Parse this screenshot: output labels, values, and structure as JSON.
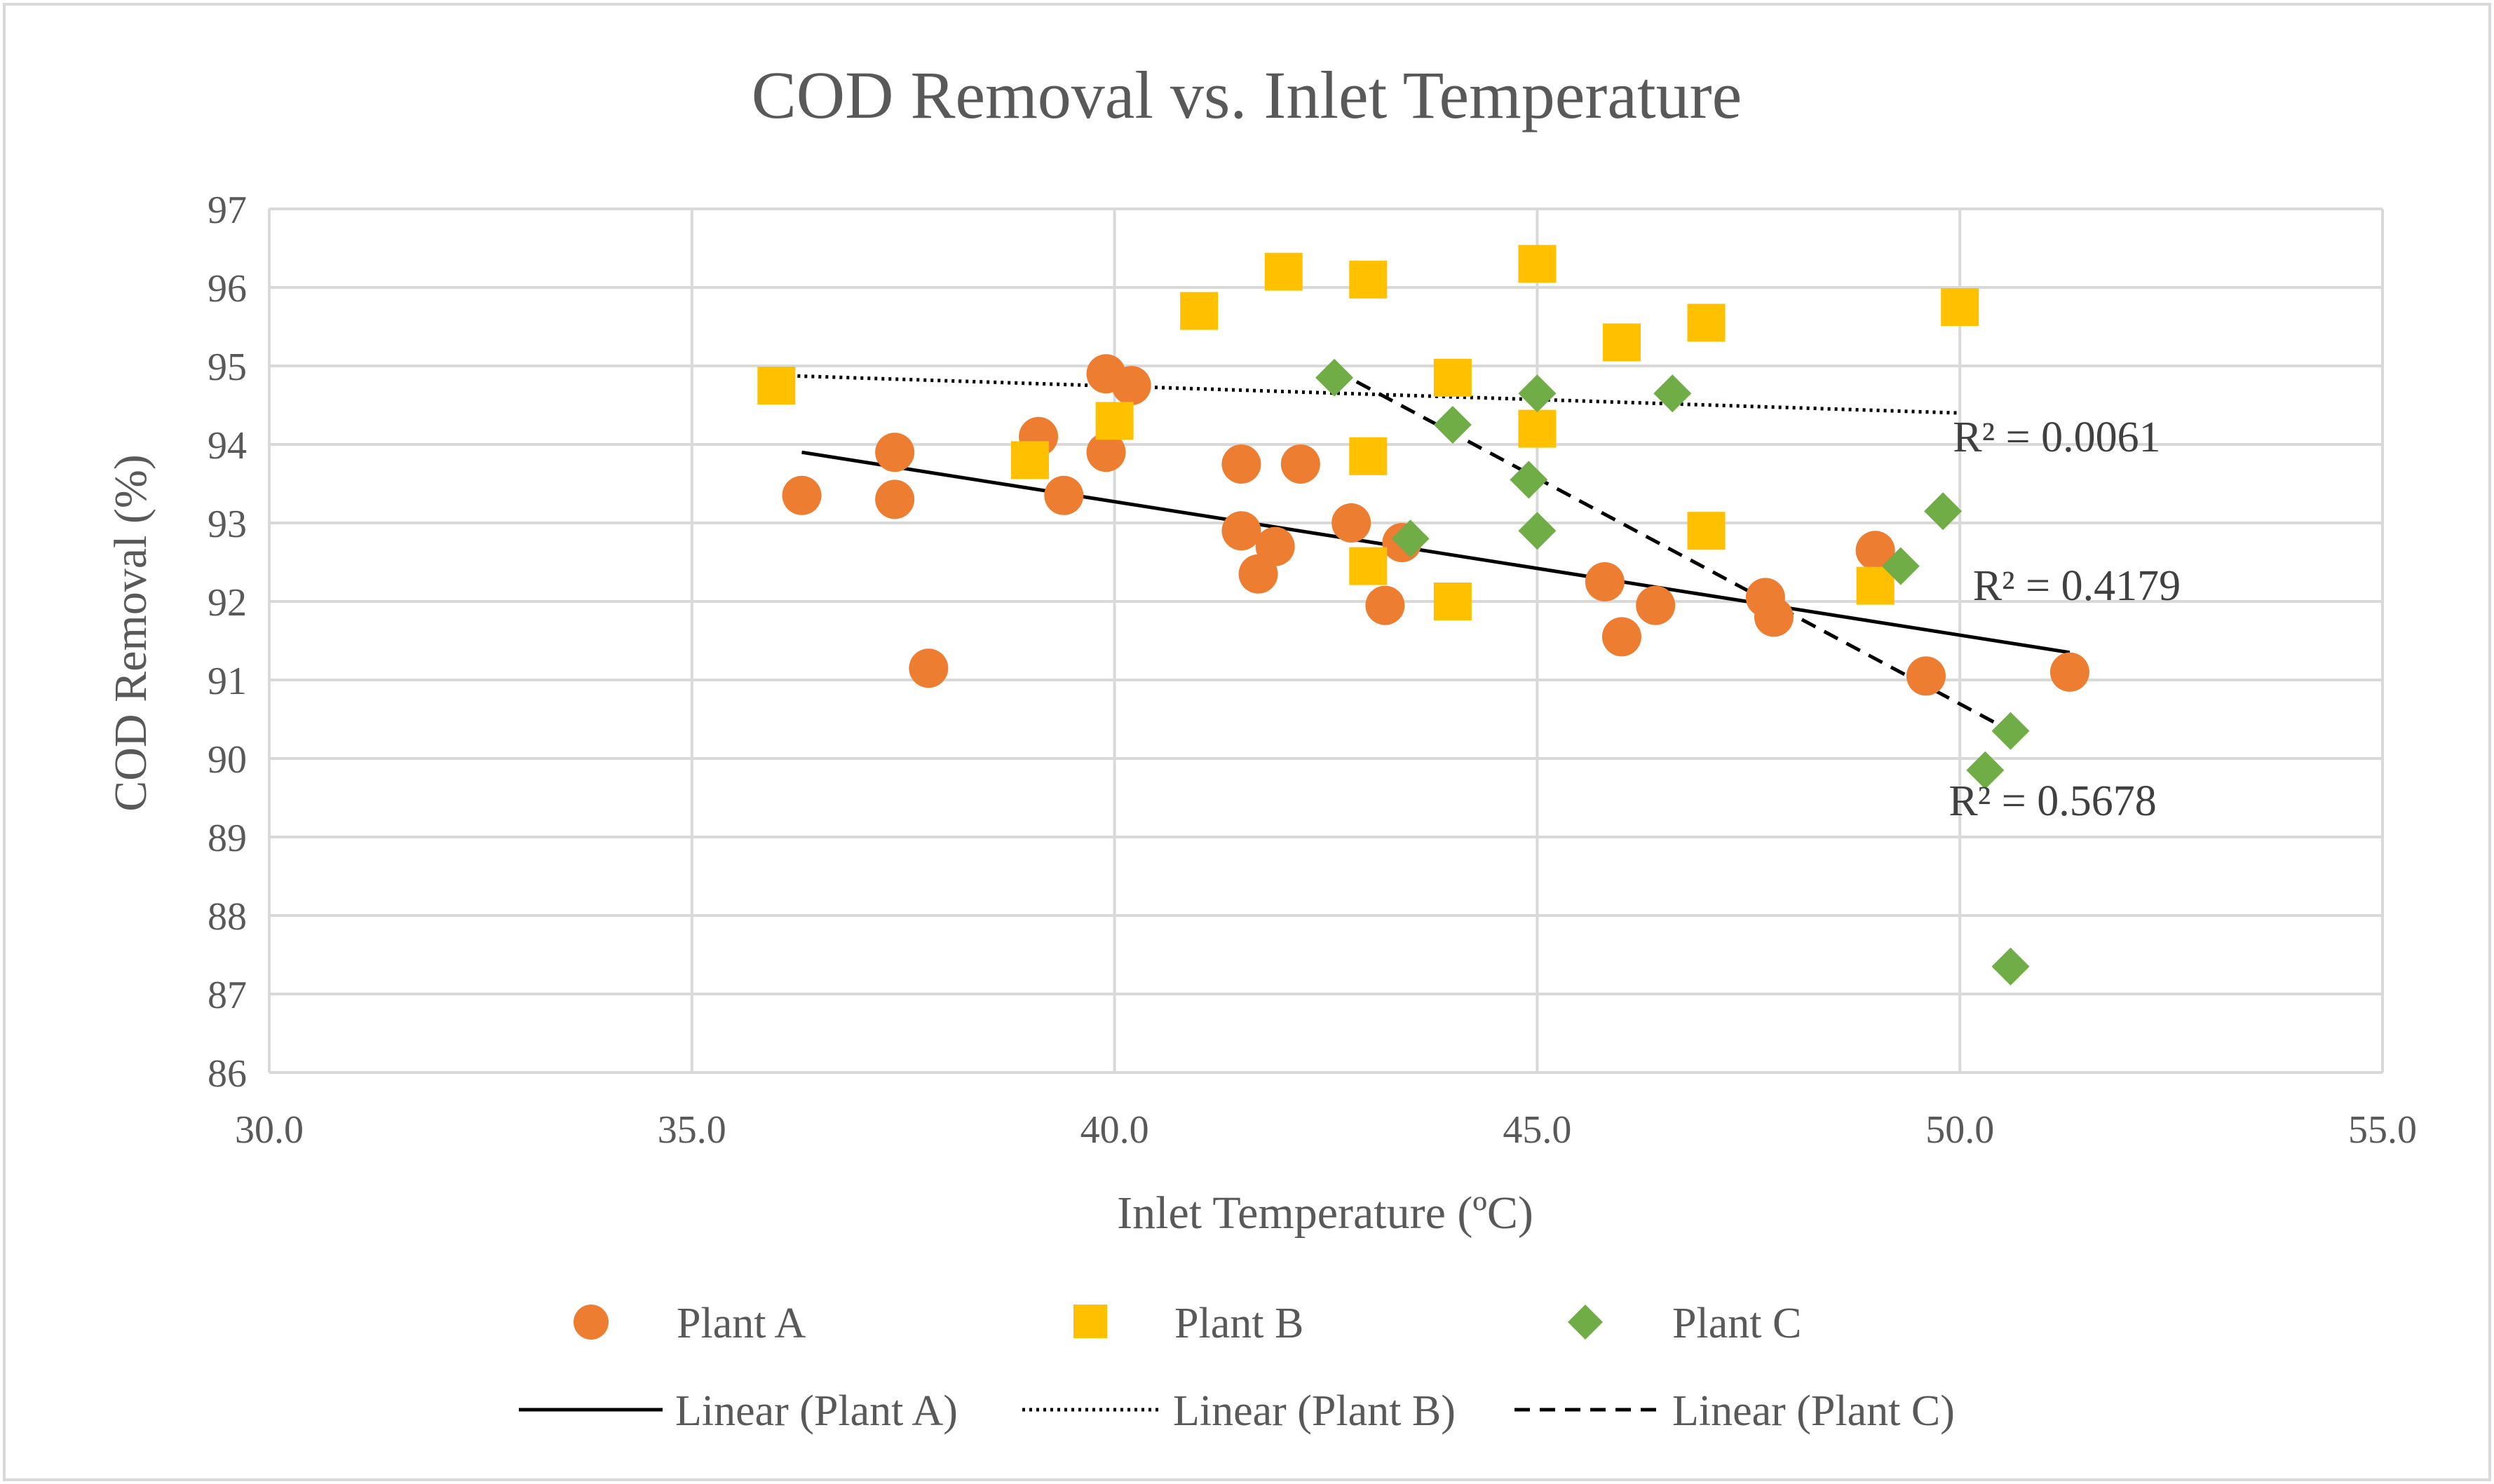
{
  "chart_data": {
    "type": "scatter",
    "title": "COD Removal vs. Inlet Temperature",
    "xlabel": "Inlet Temperature (ºC)",
    "ylabel": "COD Removal (%)",
    "xlim": [
      30.0,
      55.0
    ],
    "ylim": [
      86,
      97
    ],
    "x_ticks": [
      "30.0",
      "35.0",
      "40.0",
      "45.0",
      "50.0",
      "55.0"
    ],
    "y_ticks": [
      "86",
      "87",
      "88",
      "89",
      "90",
      "91",
      "92",
      "93",
      "94",
      "95",
      "96",
      "97"
    ],
    "grid": true,
    "legend_position": "bottom",
    "series": [
      {
        "name": "Plant A",
        "marker": "circle",
        "color": "#ED7D31",
        "x": [
          36.3,
          37.4,
          37.4,
          37.8,
          39.1,
          39.4,
          39.9,
          39.9,
          40.2,
          41.5,
          41.5,
          41.7,
          41.9,
          42.2,
          42.8,
          43.2,
          43.4,
          45.8,
          46.0,
          46.4,
          47.7,
          47.8,
          49.0,
          49.6,
          51.3
        ],
        "y": [
          93.35,
          93.9,
          93.3,
          91.15,
          94.1,
          93.35,
          94.9,
          93.9,
          94.75,
          93.75,
          92.9,
          92.35,
          92.7,
          93.75,
          93.0,
          91.95,
          92.75,
          92.25,
          91.55,
          91.95,
          92.05,
          91.8,
          92.65,
          91.05,
          91.1
        ]
      },
      {
        "name": "Plant B",
        "marker": "square",
        "color": "#FFC000",
        "x": [
          36.0,
          39.0,
          40.0,
          41.0,
          42.0,
          43.0,
          43.0,
          43.0,
          44.0,
          44.0,
          45.0,
          45.0,
          46.0,
          47.0,
          47.0,
          49.0,
          50.0
        ],
        "y": [
          94.75,
          93.8,
          94.3,
          95.7,
          96.2,
          96.1,
          93.85,
          92.45,
          94.85,
          92.0,
          96.3,
          94.2,
          95.3,
          95.55,
          92.9,
          92.2,
          95.75
        ]
      },
      {
        "name": "Plant C",
        "marker": "diamond",
        "color": "#70AD47",
        "x": [
          42.6,
          43.5,
          44.0,
          44.9,
          45.0,
          45.0,
          46.6,
          49.3,
          49.8,
          50.3,
          50.6,
          50.6
        ],
        "y": [
          94.85,
          92.8,
          94.25,
          93.55,
          94.65,
          92.9,
          94.65,
          92.45,
          93.15,
          89.85,
          90.35,
          87.35
        ]
      }
    ],
    "trendlines": [
      {
        "name": "Linear (Plant A)",
        "series": "Plant A",
        "style": "solid",
        "color": "#000000",
        "x": [
          36.3,
          51.3
        ],
        "y": [
          93.9,
          91.35
        ],
        "r2_label": "R² = 0.4179"
      },
      {
        "name": "Linear (Plant B)",
        "series": "Plant B",
        "style": "dotted",
        "color": "#000000",
        "x": [
          36.0,
          50.0
        ],
        "y": [
          94.88,
          94.4
        ],
        "r2_label": "R² = 0.0061"
      },
      {
        "name": "Linear (Plant C)",
        "series": "Plant C",
        "style": "dashed",
        "color": "#000000",
        "x": [
          42.6,
          50.6
        ],
        "y": [
          94.95,
          90.35
        ],
        "r2_label": "R² = 0.5678"
      }
    ]
  }
}
